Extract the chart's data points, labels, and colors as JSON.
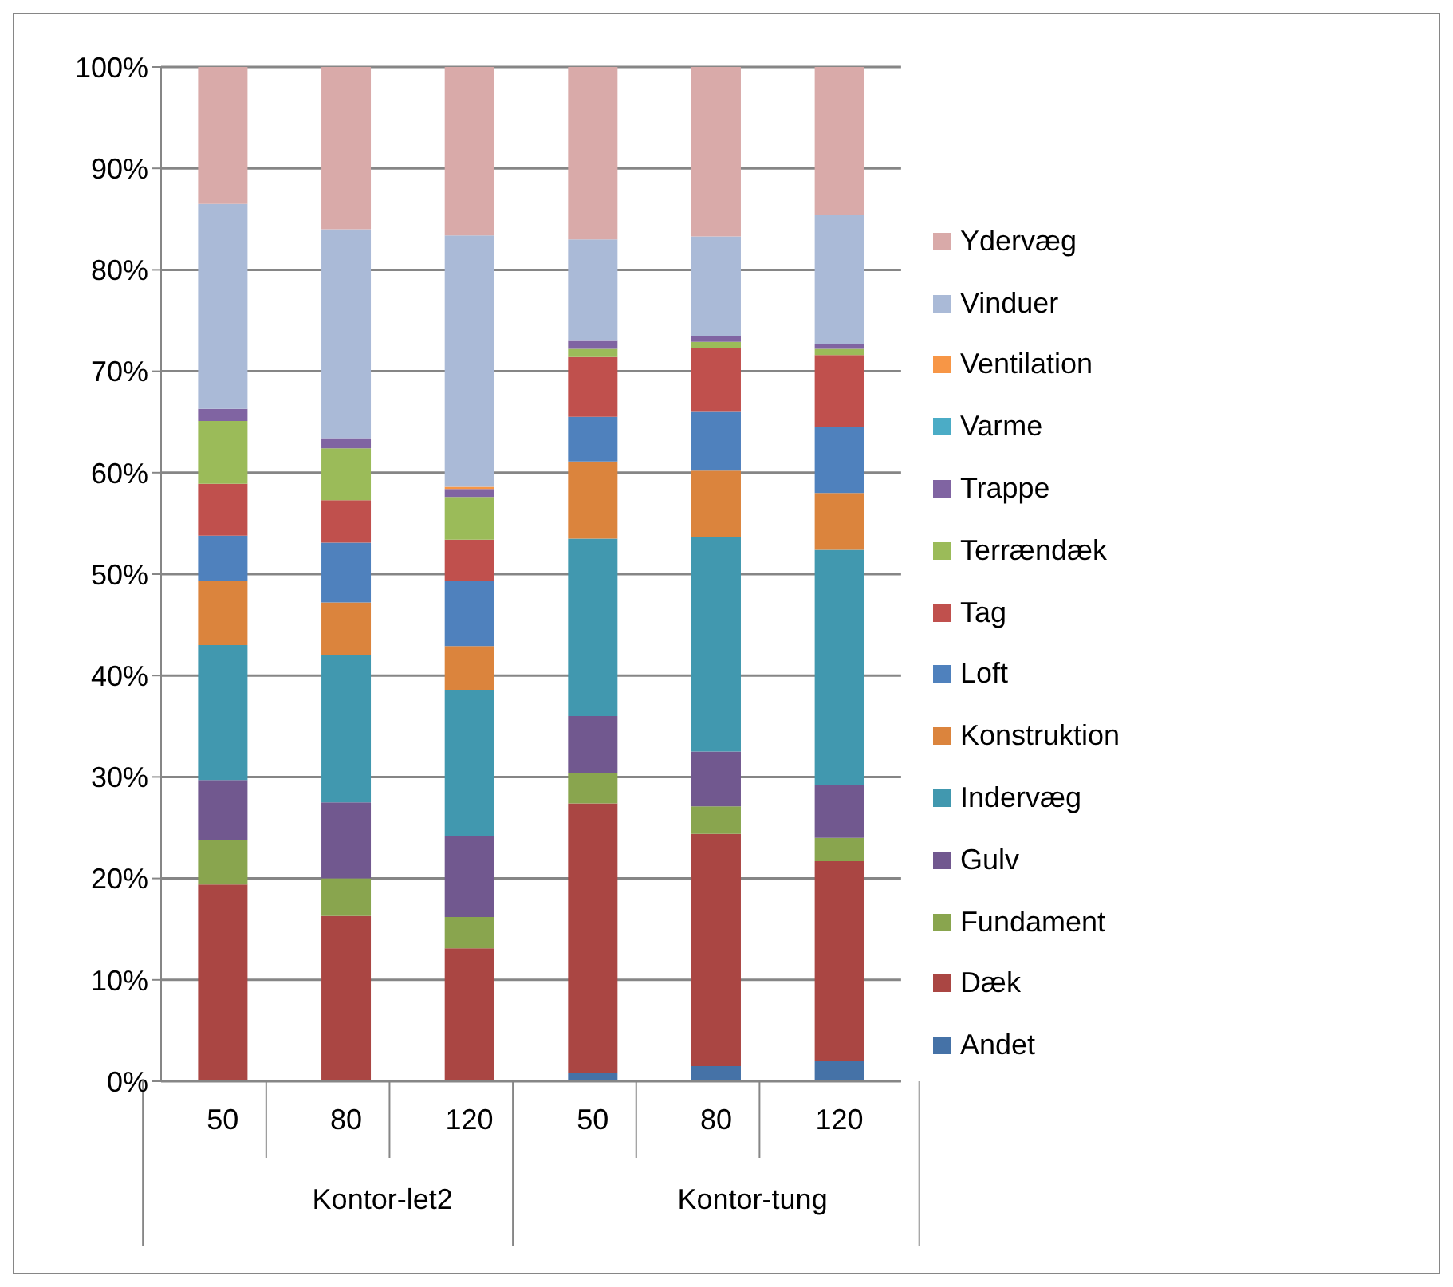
{
  "chart_data": {
    "type": "bar",
    "stacked": true,
    "categories": [
      "50",
      "80",
      "120",
      "50",
      "80",
      "120"
    ],
    "annotations": [
      "Kontor-let2",
      "Kontor-tung"
    ],
    "series": [
      {
        "name": "Andet",
        "color": "#4572a7",
        "values": [
          0,
          0,
          0,
          0.8,
          1.5,
          2.0
        ]
      },
      {
        "name": "Dæk",
        "color": "#aa4643",
        "values": [
          19.4,
          16.3,
          13.1,
          26.6,
          22.9,
          19.7
        ]
      },
      {
        "name": "Fundament",
        "color": "#89a54e",
        "values": [
          4.4,
          3.7,
          3.1,
          3.0,
          2.7,
          2.3
        ]
      },
      {
        "name": "Gulv",
        "color": "#71588f",
        "values": [
          5.9,
          7.5,
          8.0,
          5.6,
          5.4,
          5.2
        ]
      },
      {
        "name": "Indervæg",
        "color": "#4198af",
        "values": [
          13.3,
          14.5,
          14.4,
          17.5,
          21.2,
          23.2
        ]
      },
      {
        "name": "Konstruktion",
        "color": "#db843d",
        "values": [
          6.3,
          5.2,
          4.3,
          7.6,
          6.5,
          5.6
        ]
      },
      {
        "name": "Loft",
        "color": "#4f81bd",
        "values": [
          4.5,
          5.9,
          6.4,
          4.4,
          5.8,
          6.5
        ]
      },
      {
        "name": "Tag",
        "color": "#c0504d",
        "values": [
          5.1,
          4.2,
          4.1,
          5.9,
          6.3,
          7.1
        ]
      },
      {
        "name": "Terrændæk",
        "color": "#9bbb59",
        "values": [
          6.2,
          5.1,
          4.2,
          0.8,
          0.6,
          0.6
        ]
      },
      {
        "name": "Trappe",
        "color": "#8064a2",
        "values": [
          1.2,
          1.0,
          0.8,
          0.8,
          0.6,
          0.5
        ]
      },
      {
        "name": "Varme",
        "color": "#4bacc6",
        "values": [
          0,
          0,
          0,
          0,
          0,
          0
        ]
      },
      {
        "name": "Ventilation",
        "color": "#f79646",
        "values": [
          0,
          0,
          0.2,
          0,
          0,
          0
        ]
      },
      {
        "name": "Vinduer",
        "color": "#aabad7",
        "values": [
          20.2,
          20.6,
          24.8,
          10.0,
          9.8,
          12.7
        ]
      },
      {
        "name": "Ydervæg",
        "color": "#d9aaa9",
        "values": [
          13.5,
          16.0,
          16.6,
          17.0,
          16.7,
          14.6
        ]
      }
    ],
    "ylim": [
      0,
      100
    ],
    "yticks": [
      {
        "value": 0,
        "label": "0%"
      },
      {
        "value": 10,
        "label": "10%"
      },
      {
        "value": 20,
        "label": "20%"
      },
      {
        "value": 30,
        "label": "30%"
      },
      {
        "value": 40,
        "label": "40%"
      },
      {
        "value": 50,
        "label": "50%"
      },
      {
        "value": 60,
        "label": "60%"
      },
      {
        "value": 70,
        "label": "70%"
      },
      {
        "value": 80,
        "label": "80%"
      },
      {
        "value": 90,
        "label": "90%"
      },
      {
        "value": 100,
        "label": "100%"
      }
    ],
    "grid": "y",
    "legend": "right"
  }
}
